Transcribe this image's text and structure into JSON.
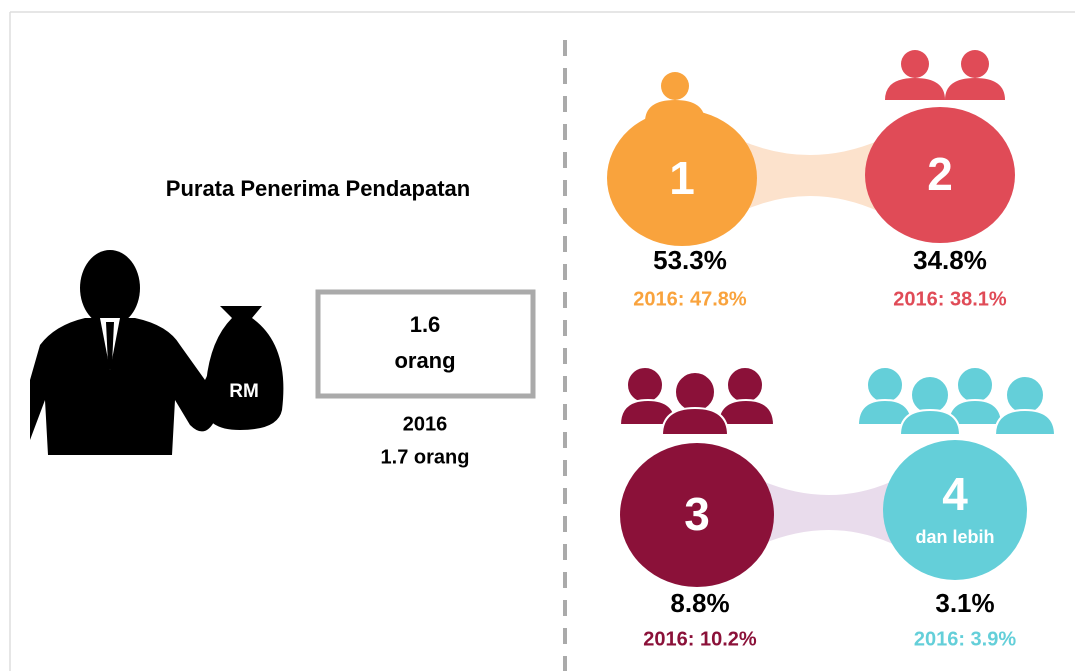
{
  "title": "Purata Penerima Pendapatan",
  "icon_label": "RM",
  "current": {
    "value": "1.6",
    "unit": "orang"
  },
  "previous": {
    "year": "2016",
    "value": "1.7 orang"
  },
  "groups": [
    {
      "number": "1",
      "share": "53.3%",
      "previous": "2016: 47.8%"
    },
    {
      "number": "2",
      "share": "34.8%",
      "previous": "2016: 38.1%"
    },
    {
      "number": "3",
      "share": "8.8%",
      "previous": "2016: 10.2%"
    },
    {
      "number": "4",
      "sublabel": "dan lebih",
      "share": "3.1%",
      "previous": "2016: 3.9%"
    }
  ]
}
